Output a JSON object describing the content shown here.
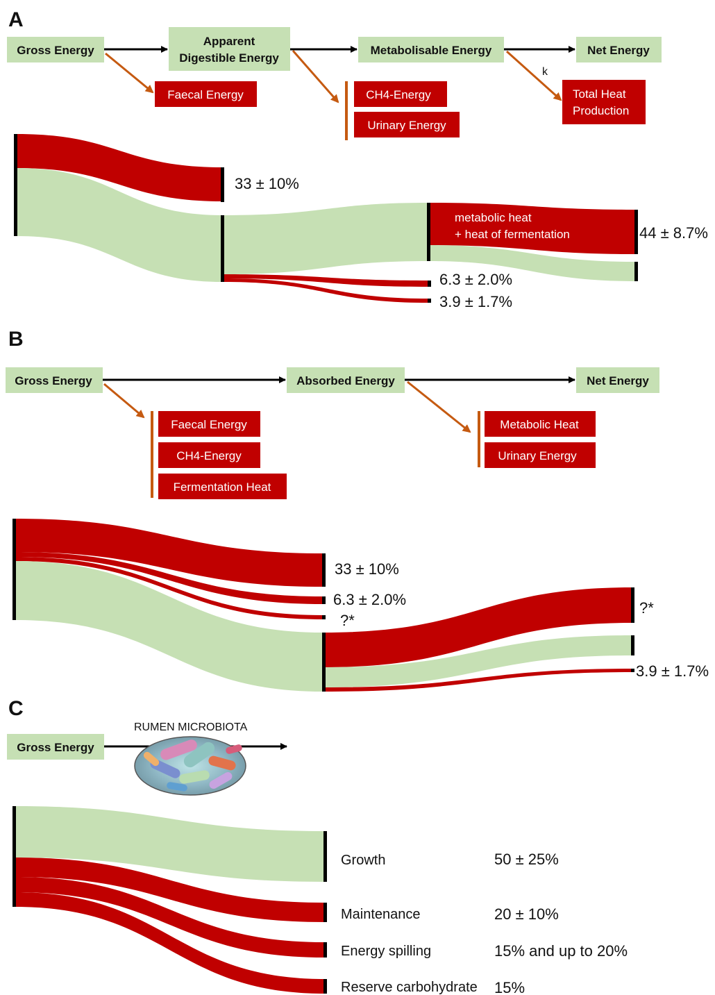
{
  "panel_a": {
    "letter": "A",
    "boxes": {
      "gross_energy": "Gross Energy",
      "apparent_de_line1": "Apparent",
      "apparent_de_line2": "Digestible Energy",
      "metabolisable_energy": "Metabolisable Energy",
      "net_energy": "Net Energy"
    },
    "losses": {
      "faecal_energy": "Faecal Energy",
      "ch4_energy": "CH4-Energy",
      "urinary_energy": "Urinary Energy",
      "total_heat_line1": "Total Heat",
      "total_heat_line2": "Production"
    },
    "k_label": "k",
    "flow_values": {
      "faecal": "33 ± 10%",
      "heat": "44 ± 8.7%",
      "ch4": "6.3 ± 2.0%",
      "urinary": "3.9 ± 1.7%"
    },
    "heat_note_line1": "metabolic heat",
    "heat_note_line2": "+ heat of fermentation"
  },
  "panel_b": {
    "letter": "B",
    "boxes": {
      "gross_energy": "Gross Energy",
      "absorbed_energy": "Absorbed Energy",
      "net_energy": "Net Energy"
    },
    "losses": {
      "faecal_energy": "Faecal Energy",
      "ch4_energy": "CH4-Energy",
      "fermentation_heat": "Fermentation Heat",
      "metabolic_heat": "Metabolic Heat",
      "urinary_energy": "Urinary Energy"
    },
    "flow_values": {
      "faecal": "33 ± 10%",
      "ch4": "6.3 ± 2.0%",
      "fermentation": "?*",
      "metabolic": "?*",
      "urinary": "3.9 ± 1.7%"
    }
  },
  "panel_c": {
    "letter": "C",
    "gross_energy": "Gross Energy",
    "microbiota_label": "RUMEN MICROBIOTA",
    "outputs": [
      {
        "label": "Growth",
        "value": "50 ± 25%"
      },
      {
        "label": "Maintenance",
        "value": "20 ± 10%"
      },
      {
        "label": "Energy spilling",
        "value": "15% and up to 20%"
      },
      {
        "label": "Reserve carbohydrate",
        "value": "15%"
      }
    ]
  },
  "colors": {
    "green": "#c6e0b4",
    "red": "#c00000",
    "orange": "#c55a11",
    "black": "#000000"
  }
}
